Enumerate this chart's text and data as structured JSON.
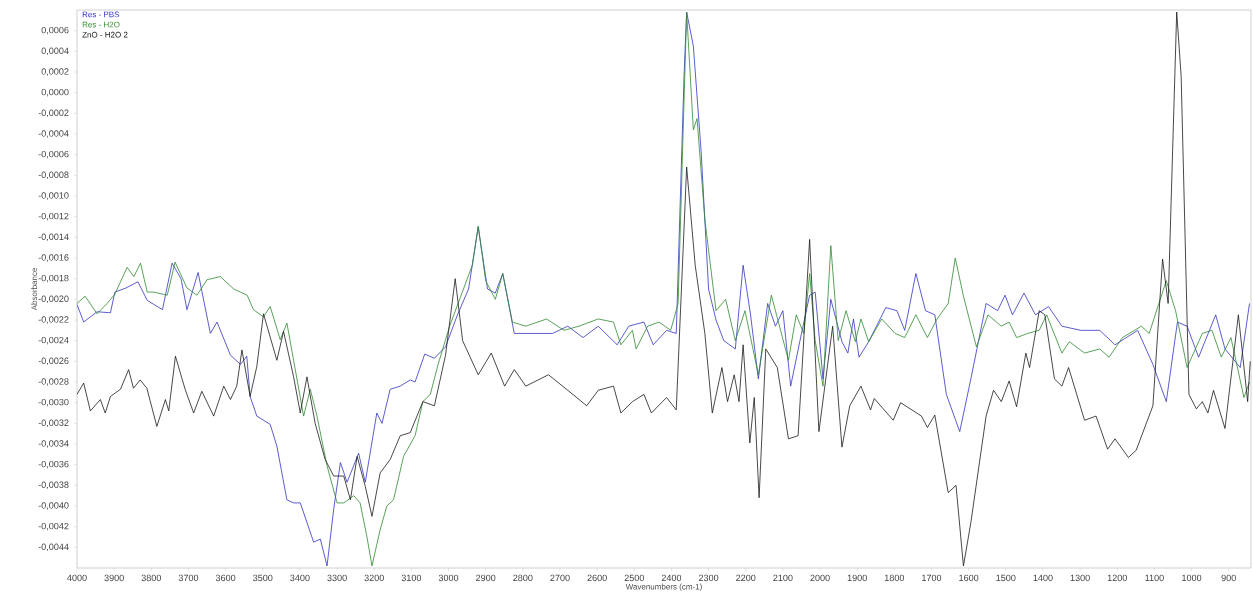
{
  "chart_data": {
    "type": "line",
    "xlabel": "Wavenumbers (cm-1)",
    "ylabel": "Absorbance",
    "legend": "top left",
    "grid": false,
    "marker": "none",
    "line_style": "solid",
    "xlim": [
      4000,
      840
    ],
    "ylim": [
      -0.0046,
      0.0008
    ],
    "xticks": [
      4000,
      3900,
      3800,
      3700,
      3600,
      3500,
      3400,
      3300,
      3200,
      3100,
      3000,
      2900,
      2800,
      2700,
      2600,
      2500,
      2400,
      2300,
      2200,
      2100,
      2000,
      1900,
      1800,
      1700,
      1600,
      1500,
      1400,
      1300,
      1200,
      1100,
      1000,
      900
    ],
    "yticks": [
      {
        "value": 0.0006,
        "label": "0,0006"
      },
      {
        "value": 0.0004,
        "label": "0,0004"
      },
      {
        "value": 0.0002,
        "label": "0,0002"
      },
      {
        "value": 0.0,
        "label": "0,0000"
      },
      {
        "value": -0.0002,
        "label": "-0,0002"
      },
      {
        "value": -0.0004,
        "label": "-0,0004"
      },
      {
        "value": -0.0006,
        "label": "-0,0006"
      },
      {
        "value": -0.0008,
        "label": "-0,0008"
      },
      {
        "value": -0.001,
        "label": "-0,0010"
      },
      {
        "value": -0.0012,
        "label": "-0,0012"
      },
      {
        "value": -0.0014,
        "label": "-0,0014"
      },
      {
        "value": -0.0016,
        "label": "-0,0016"
      },
      {
        "value": -0.0018,
        "label": "-0,0018"
      },
      {
        "value": -0.002,
        "label": "-0,0020"
      },
      {
        "value": -0.0022,
        "label": "-0,0022"
      },
      {
        "value": -0.0024,
        "label": "-0,0024"
      },
      {
        "value": -0.0026,
        "label": "-0,0026"
      },
      {
        "value": -0.0028,
        "label": "-0,0028"
      },
      {
        "value": -0.003,
        "label": "-0,0030"
      },
      {
        "value": -0.0032,
        "label": "-0,0032"
      },
      {
        "value": -0.0034,
        "label": "-0,0034"
      },
      {
        "value": -0.0036,
        "label": "-0,0036"
      },
      {
        "value": -0.0038,
        "label": "-0,0038"
      },
      {
        "value": -0.004,
        "label": "-0,0040"
      },
      {
        "value": -0.0042,
        "label": "-0,0042"
      },
      {
        "value": -0.0044,
        "label": "-0,0044"
      }
    ],
    "series": [
      {
        "name": "Res - PBS",
        "color": "#3333c4",
        "x": [
          4000,
          3982,
          3946,
          3910,
          3898,
          3868,
          3836,
          3811,
          3770,
          3744,
          3720,
          3704,
          3674,
          3641,
          3623,
          3587,
          3560,
          3543,
          3534,
          3516,
          3480,
          3462,
          3435,
          3417,
          3399,
          3363,
          3345,
          3327,
          3309,
          3291,
          3273,
          3242,
          3224,
          3193,
          3179,
          3157,
          3130,
          3103,
          3090,
          3064,
          3038,
          3008,
          2977,
          2946,
          2920,
          2895,
          2874,
          2854,
          2823,
          2772,
          2720,
          2679,
          2638,
          2597,
          2546,
          2515,
          2474,
          2449,
          2413,
          2387,
          2366,
          2359,
          2341,
          2320,
          2300,
          2280,
          2259,
          2228,
          2207,
          2187,
          2166,
          2141,
          2120,
          2100,
          2079,
          2054,
          2028,
          2013,
          1992,
          1971,
          1941,
          1925,
          1910,
          1895,
          1869,
          1823,
          1793,
          1772,
          1742,
          1716,
          1691,
          1660,
          1624,
          1594,
          1553,
          1522,
          1502,
          1482,
          1451,
          1420,
          1385,
          1349,
          1298,
          1247,
          1206,
          1145,
          1104,
          1068,
          1038,
          1012,
          981,
          935,
          910,
          869,
          844
        ],
        "values": [
          -0.00205,
          -0.00222,
          -0.00212,
          -0.00213,
          -0.00193,
          -0.00189,
          -0.00183,
          -0.00201,
          -0.0021,
          -0.00165,
          -0.0018,
          -0.0021,
          -0.00174,
          -0.00233,
          -0.00222,
          -0.00254,
          -0.00263,
          -0.00255,
          -0.00294,
          -0.00313,
          -0.00321,
          -0.00342,
          -0.00394,
          -0.00397,
          -0.00397,
          -0.00435,
          -0.00432,
          -0.00458,
          -0.00403,
          -0.00358,
          -0.00377,
          -0.00349,
          -0.00377,
          -0.0031,
          -0.0032,
          -0.00287,
          -0.00284,
          -0.00278,
          -0.0028,
          -0.00253,
          -0.00257,
          -0.00246,
          -0.00216,
          -0.0019,
          -0.0013,
          -0.0019,
          -0.00194,
          -0.00175,
          -0.00233,
          -0.00233,
          -0.00233,
          -0.00226,
          -0.00237,
          -0.00226,
          -0.00244,
          -0.00226,
          -0.00222,
          -0.00244,
          -0.0023,
          -0.00233,
          0.00016,
          0.00078,
          0.00045,
          -0.00057,
          -0.0019,
          -0.0022,
          -0.0024,
          -0.00248,
          -0.00167,
          -0.00215,
          -0.00277,
          -0.00204,
          -0.00226,
          -0.00211,
          -0.00284,
          -0.0024,
          -0.00196,
          -0.00193,
          -0.00277,
          -0.002,
          -0.00241,
          -0.00252,
          -0.00219,
          -0.00256,
          -0.00241,
          -0.00208,
          -0.00211,
          -0.0023,
          -0.00175,
          -0.00211,
          -0.00215,
          -0.00292,
          -0.00328,
          -0.00277,
          -0.00204,
          -0.00211,
          -0.00196,
          -0.00215,
          -0.00194,
          -0.00215,
          -0.00207,
          -0.00226,
          -0.0023,
          -0.0023,
          -0.00244,
          -0.0023,
          -0.00263,
          -0.00299,
          -0.00222,
          -0.00226,
          -0.00256,
          -0.00215,
          -0.00248,
          -0.00266,
          -0.00204
        ]
      },
      {
        "name": "Res - H2O",
        "color": "#2e8b2e",
        "x": [
          4000,
          3978,
          3946,
          3919,
          3898,
          3865,
          3847,
          3829,
          3811,
          3793,
          3757,
          3736,
          3704,
          3677,
          3650,
          3614,
          3578,
          3542,
          3525,
          3498,
          3480,
          3453,
          3435,
          3417,
          3390,
          3372,
          3354,
          3327,
          3300,
          3282,
          3255,
          3238,
          3220,
          3206,
          3184,
          3166,
          3148,
          3121,
          3090,
          3069,
          3049,
          3028,
          2997,
          2967,
          2936,
          2920,
          2900,
          2874,
          2854,
          2828,
          2792,
          2736,
          2689,
          2649,
          2597,
          2556,
          2536,
          2505,
          2495,
          2464,
          2433,
          2402,
          2382,
          2359,
          2341,
          2331,
          2310,
          2280,
          2254,
          2228,
          2202,
          2166,
          2131,
          2085,
          2064,
          2044,
          2028,
          2013,
          1992,
          1971,
          1951,
          1930,
          1905,
          1890,
          1869,
          1834,
          1798,
          1772,
          1742,
          1711,
          1685,
          1655,
          1636,
          1614,
          1579,
          1548,
          1512,
          1491,
          1471,
          1441,
          1410,
          1390,
          1349,
          1329,
          1288,
          1247,
          1222,
          1186,
          1135,
          1114,
          1068,
          1043,
          1012,
          971,
          945,
          920,
          894,
          859,
          844
        ],
        "values": [
          -0.00204,
          -0.00197,
          -0.00214,
          -0.00204,
          -0.00195,
          -0.00169,
          -0.00178,
          -0.00165,
          -0.00193,
          -0.00193,
          -0.00196,
          -0.00164,
          -0.00189,
          -0.00196,
          -0.00181,
          -0.00178,
          -0.0019,
          -0.00196,
          -0.0021,
          -0.00217,
          -0.00207,
          -0.00239,
          -0.00223,
          -0.00259,
          -0.00313,
          -0.00287,
          -0.00313,
          -0.00361,
          -0.00397,
          -0.00397,
          -0.0039,
          -0.00397,
          -0.00429,
          -0.00458,
          -0.00423,
          -0.004,
          -0.00394,
          -0.00352,
          -0.00332,
          -0.00299,
          -0.00292,
          -0.00263,
          -0.00226,
          -0.00197,
          -0.00167,
          -0.00129,
          -0.00182,
          -0.002,
          -0.00175,
          -0.00222,
          -0.00226,
          -0.00219,
          -0.0023,
          -0.00226,
          -0.00219,
          -0.00222,
          -0.00244,
          -0.0023,
          -0.00248,
          -0.00226,
          -0.00222,
          -0.0023,
          -0.00204,
          0.00078,
          -0.00036,
          -0.00025,
          -0.00123,
          -0.00211,
          -0.002,
          -0.0024,
          -0.00211,
          -0.00273,
          -0.00196,
          -0.00259,
          -0.00215,
          -0.00233,
          -0.00175,
          -0.0024,
          -0.00284,
          -0.00148,
          -0.0024,
          -0.00211,
          -0.00241,
          -0.00219,
          -0.00241,
          -0.00219,
          -0.00233,
          -0.00237,
          -0.00215,
          -0.00237,
          -0.00219,
          -0.00204,
          -0.0016,
          -0.00197,
          -0.00246,
          -0.00215,
          -0.00226,
          -0.00222,
          -0.00237,
          -0.00233,
          -0.0023,
          -0.00215,
          -0.00252,
          -0.00241,
          -0.00252,
          -0.00248,
          -0.00256,
          -0.00237,
          -0.00226,
          -0.00233,
          -0.00182,
          -0.00211,
          -0.00266,
          -0.00233,
          -0.0023,
          -0.00256,
          -0.00237,
          -0.00295,
          -0.0028
        ]
      },
      {
        "name": "ZnO - H2O 2",
        "color": "#1a1a1a",
        "x": [
          4000,
          3982,
          3964,
          3937,
          3924,
          3910,
          3883,
          3861,
          3848,
          3830,
          3812,
          3785,
          3762,
          3753,
          3735,
          3709,
          3686,
          3664,
          3632,
          3605,
          3587,
          3570,
          3556,
          3534,
          3516,
          3498,
          3462,
          3444,
          3417,
          3399,
          3381,
          3359,
          3332,
          3309,
          3282,
          3264,
          3246,
          3224,
          3206,
          3184,
          3157,
          3130,
          3103,
          3069,
          3038,
          3008,
          2982,
          2962,
          2920,
          2885,
          2849,
          2823,
          2792,
          2731,
          2679,
          2628,
          2597,
          2556,
          2536,
          2505,
          2474,
          2454,
          2413,
          2387,
          2359,
          2336,
          2310,
          2290,
          2264,
          2249,
          2231,
          2218,
          2207,
          2189,
          2177,
          2164,
          2146,
          2115,
          2085,
          2059,
          2028,
          2003,
          1966,
          1941,
          1920,
          1890,
          1864,
          1854,
          1803,
          1783,
          1727,
          1711,
          1691,
          1655,
          1634,
          1614,
          1594,
          1553,
          1533,
          1512,
          1491,
          1471,
          1446,
          1436,
          1410,
          1395,
          1369,
          1349,
          1331,
          1288,
          1257,
          1226,
          1206,
          1170,
          1149,
          1104,
          1078,
          1063,
          1040,
          1028,
          1007,
          987,
          971,
          956,
          941,
          910,
          874,
          849,
          842
        ],
        "values": [
          -0.00292,
          -0.00281,
          -0.00308,
          -0.00297,
          -0.0031,
          -0.00294,
          -0.00287,
          -0.00268,
          -0.00286,
          -0.00278,
          -0.00286,
          -0.00323,
          -0.00297,
          -0.00308,
          -0.00255,
          -0.00287,
          -0.0031,
          -0.00289,
          -0.00313,
          -0.00284,
          -0.00297,
          -0.00284,
          -0.00249,
          -0.00294,
          -0.00265,
          -0.00214,
          -0.00259,
          -0.00231,
          -0.00275,
          -0.0031,
          -0.00275,
          -0.0032,
          -0.00355,
          -0.00371,
          -0.00371,
          -0.00394,
          -0.00352,
          -0.00381,
          -0.0041,
          -0.00368,
          -0.00355,
          -0.00332,
          -0.00329,
          -0.00299,
          -0.00303,
          -0.00254,
          -0.0018,
          -0.0024,
          -0.00273,
          -0.00252,
          -0.00284,
          -0.00268,
          -0.00284,
          -0.00273,
          -0.00288,
          -0.00303,
          -0.00288,
          -0.00284,
          -0.0031,
          -0.00299,
          -0.00292,
          -0.0031,
          -0.00295,
          -0.00307,
          -0.00072,
          -0.00167,
          -0.00233,
          -0.0031,
          -0.00266,
          -0.00299,
          -0.00273,
          -0.00299,
          -0.00244,
          -0.00339,
          -0.00295,
          -0.00392,
          -0.00248,
          -0.00266,
          -0.00335,
          -0.00332,
          -0.00142,
          -0.00328,
          -0.00226,
          -0.00343,
          -0.00303,
          -0.00284,
          -0.00307,
          -0.00296,
          -0.00317,
          -0.003,
          -0.00313,
          -0.00324,
          -0.00312,
          -0.00387,
          -0.0038,
          -0.00458,
          -0.00416,
          -0.00313,
          -0.00288,
          -0.00299,
          -0.00279,
          -0.00304,
          -0.00252,
          -0.00266,
          -0.00211,
          -0.00215,
          -0.00277,
          -0.00284,
          -0.00266,
          -0.00317,
          -0.00313,
          -0.00345,
          -0.00335,
          -0.00353,
          -0.00346,
          -0.00303,
          -0.00161,
          -0.00204,
          0.00078,
          0.00016,
          -0.00292,
          -0.00306,
          -0.00299,
          -0.0031,
          -0.00288,
          -0.00325,
          -0.00215,
          -0.00299,
          -0.0026
        ]
      }
    ]
  }
}
